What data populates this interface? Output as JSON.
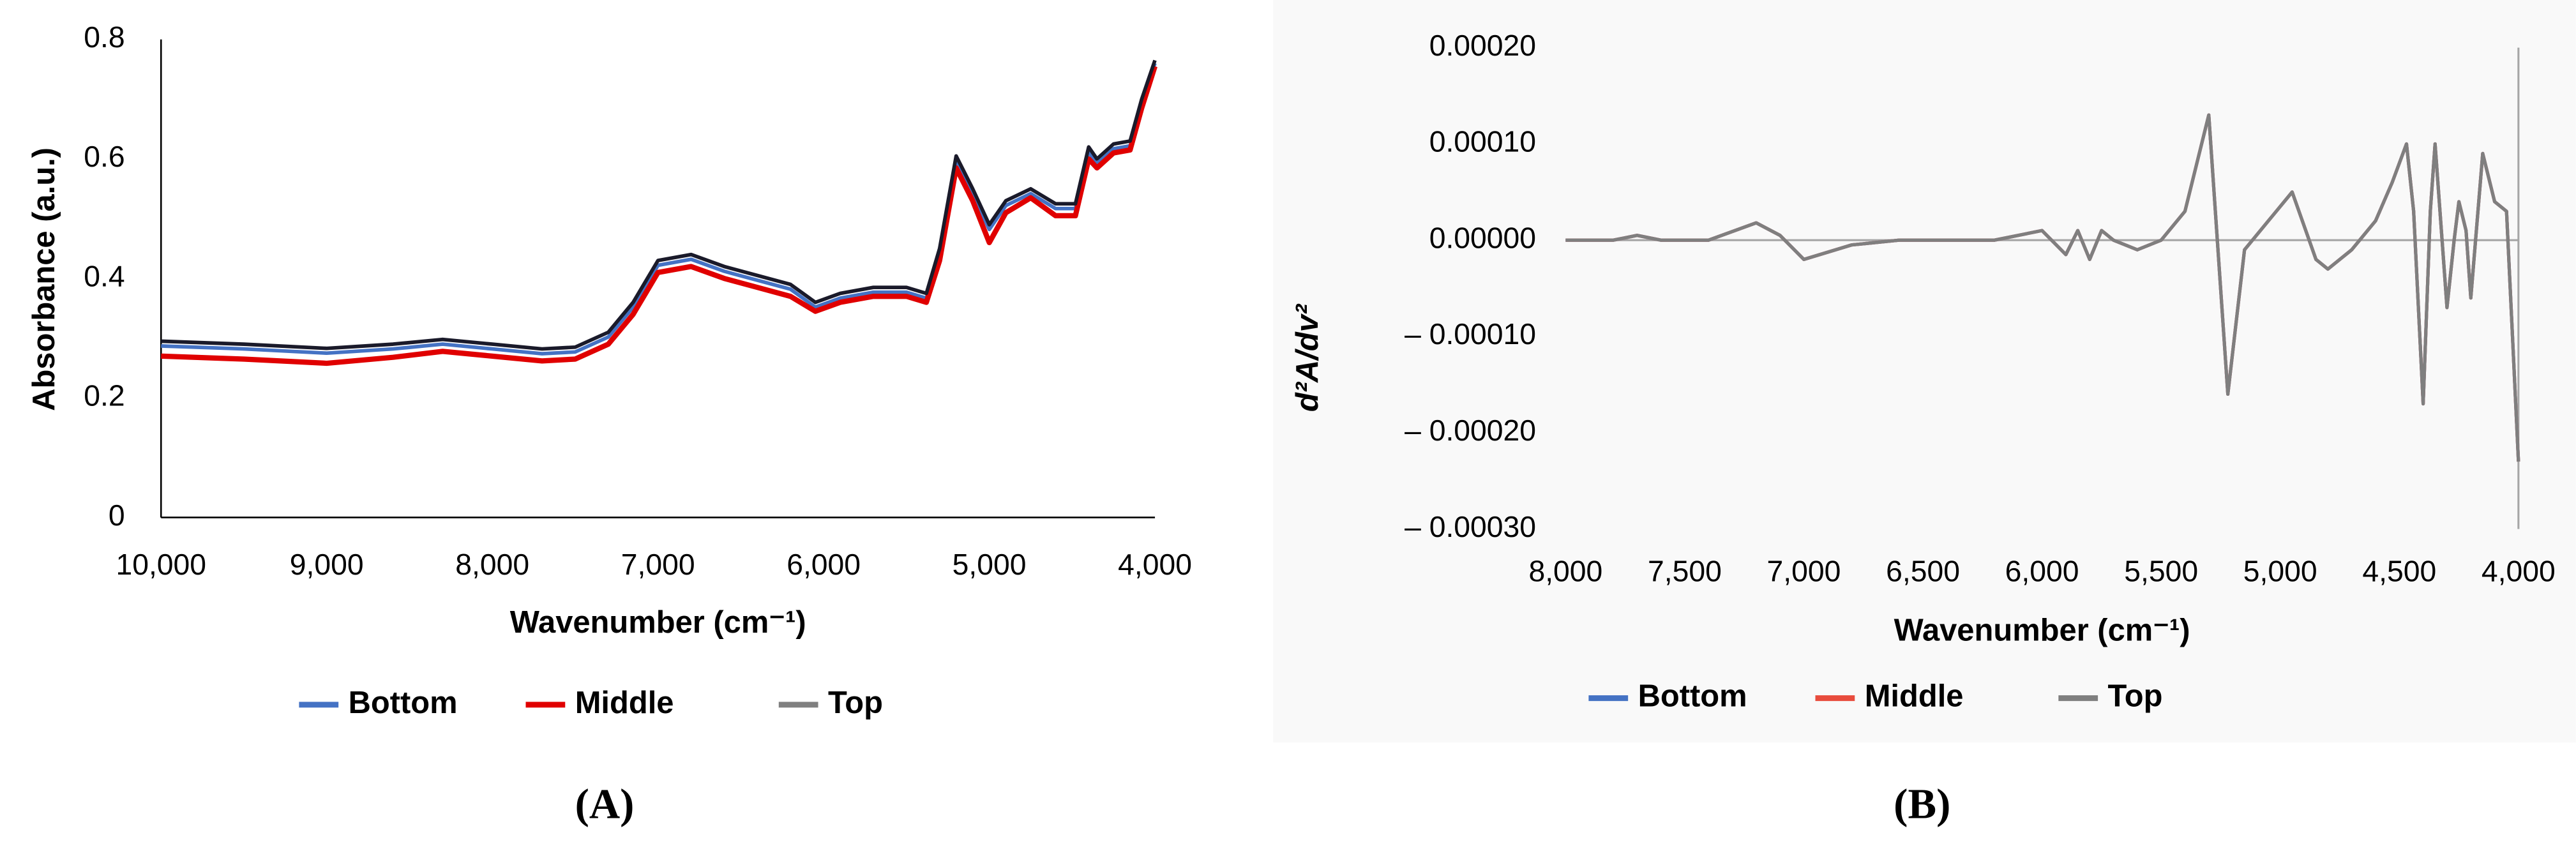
{
  "chart_data": [
    {
      "type": "line",
      "x_label": "Wavenumber (cm⁻¹)",
      "y_label": "Absorbance (a.u.)",
      "panel_label": "(A)",
      "x": [
        10000,
        9500,
        9000,
        8600,
        8300,
        8000,
        7700,
        7500,
        7300,
        7150,
        7000,
        6800,
        6600,
        6400,
        6200,
        6050,
        5900,
        5700,
        5500,
        5380,
        5300,
        5200,
        5100,
        5000,
        4900,
        4750,
        4600,
        4480,
        4400,
        4350,
        4250,
        4150,
        4080,
        4000
      ],
      "xlim": [
        10000,
        4000
      ],
      "xticks": [
        {
          "value": 10000,
          "label": "10,000"
        },
        {
          "value": 9000,
          "label": "9,000"
        },
        {
          "value": 8000,
          "label": "8,000"
        },
        {
          "value": 7000,
          "label": "7,000"
        },
        {
          "value": 6000,
          "label": "6,000"
        },
        {
          "value": 5000,
          "label": "5,000"
        },
        {
          "value": 4000,
          "label": "4,000"
        }
      ],
      "ylim": [
        0,
        0.8
      ],
      "yticks": [
        0,
        0.2,
        0.4,
        0.6,
        0.8
      ],
      "series": [
        {
          "name": "Bottom",
          "color": "#4472c4",
          "values": [
            0.287,
            0.282,
            0.275,
            0.282,
            0.29,
            0.282,
            0.274,
            0.277,
            0.302,
            0.352,
            0.422,
            0.432,
            0.412,
            0.397,
            0.382,
            0.352,
            0.367,
            0.377,
            0.377,
            0.367,
            0.442,
            0.597,
            0.542,
            0.482,
            0.522,
            0.542,
            0.517,
            0.517,
            0.612,
            0.592,
            0.617,
            0.622,
            0.692,
            0.76
          ]
        },
        {
          "name": "Middle",
          "color": "#e00000",
          "values": [
            0.27,
            0.265,
            0.258,
            0.268,
            0.278,
            0.27,
            0.262,
            0.265,
            0.29,
            0.34,
            0.41,
            0.42,
            0.4,
            0.385,
            0.37,
            0.345,
            0.36,
            0.37,
            0.37,
            0.36,
            0.43,
            0.585,
            0.53,
            0.46,
            0.51,
            0.535,
            0.505,
            0.505,
            0.6,
            0.585,
            0.61,
            0.615,
            0.685,
            0.755
          ]
        },
        {
          "name": "Top",
          "color": "#1a1a2a",
          "legend_color": "#808080",
          "values": [
            0.295,
            0.29,
            0.283,
            0.29,
            0.298,
            0.29,
            0.282,
            0.285,
            0.31,
            0.36,
            0.43,
            0.44,
            0.42,
            0.405,
            0.39,
            0.36,
            0.375,
            0.385,
            0.385,
            0.375,
            0.45,
            0.605,
            0.55,
            0.49,
            0.53,
            0.55,
            0.525,
            0.525,
            0.62,
            0.6,
            0.625,
            0.63,
            0.7,
            0.765
          ]
        }
      ]
    },
    {
      "type": "line",
      "x_label": "Wavenumber (cm⁻¹)",
      "y_label": "d²A/dv²",
      "panel_label": "(B)",
      "x": [
        8000,
        7800,
        7700,
        7600,
        7400,
        7200,
        7100,
        7000,
        6800,
        6600,
        6400,
        6200,
        6000,
        5900,
        5850,
        5800,
        5750,
        5700,
        5600,
        5500,
        5400,
        5300,
        5220,
        5150,
        5050,
        4950,
        4850,
        4800,
        4750,
        4700,
        4600,
        4530,
        4470,
        4440,
        4400,
        4370,
        4350,
        4300,
        4270,
        4250,
        4220,
        4200,
        4150,
        4100,
        4050,
        4000
      ],
      "xlim": [
        8000,
        4000
      ],
      "xticks": [
        {
          "value": 8000,
          "label": "8,000"
        },
        {
          "value": 7500,
          "label": "7,500"
        },
        {
          "value": 7000,
          "label": "7,000"
        },
        {
          "value": 6500,
          "label": "6,500"
        },
        {
          "value": 6000,
          "label": "6,000"
        },
        {
          "value": 5500,
          "label": "5,500"
        },
        {
          "value": 5000,
          "label": "5,000"
        },
        {
          "value": 4500,
          "label": "4,500"
        },
        {
          "value": 4000,
          "label": "4,000"
        }
      ],
      "ylim": [
        -0.0003,
        0.0002
      ],
      "yticks": [
        {
          "value": 0.0002,
          "label": "0.00020"
        },
        {
          "value": 0.0001,
          "label": "0.00010"
        },
        {
          "value": 0,
          "label": "0.00000"
        },
        {
          "value": -0.0001,
          "label": "– 0.00010"
        },
        {
          "value": -0.0002,
          "label": "– 0.00020"
        },
        {
          "value": -0.0003,
          "label": "– 0.00030"
        }
      ],
      "series": [
        {
          "name": "Bottom",
          "color": "#4472c4",
          "values": [
            0,
            0,
            5e-06,
            0,
            0,
            1.8e-05,
            5e-06,
            -2e-05,
            -5e-06,
            0,
            0,
            0,
            1e-05,
            -1.5e-05,
            1e-05,
            -2e-05,
            1e-05,
            0,
            -1e-05,
            0,
            3e-05,
            0.00013,
            -0.00016,
            -1e-05,
            2e-05,
            5e-05,
            -2e-05,
            -3e-05,
            -2e-05,
            -1e-05,
            2e-05,
            6e-05,
            0.0001,
            3e-05,
            -0.00017,
            3e-05,
            0.0001,
            -7e-05,
            0,
            4e-05,
            1e-05,
            -6e-05,
            9e-05,
            4e-05,
            3e-05,
            -0.00023
          ]
        },
        {
          "name": "Middle",
          "color": "#e84c3d",
          "values": [
            0,
            0,
            5e-06,
            0,
            0,
            1.8e-05,
            5e-06,
            -2e-05,
            -5e-06,
            0,
            0,
            0,
            1e-05,
            -1.5e-05,
            1e-05,
            -2e-05,
            1e-05,
            0,
            -1e-05,
            0,
            3e-05,
            0.00013,
            -0.00016,
            -1e-05,
            2e-05,
            5e-05,
            -2e-05,
            -3e-05,
            -2e-05,
            -1e-05,
            2e-05,
            6e-05,
            0.0001,
            3e-05,
            -0.00017,
            3e-05,
            0.0001,
            -7e-05,
            0,
            4e-05,
            1e-05,
            -6e-05,
            9e-05,
            4e-05,
            3e-05,
            -0.00023
          ]
        },
        {
          "name": "Top",
          "color": "#7f7f7f",
          "values": [
            0,
            0,
            5e-06,
            0,
            0,
            1.8e-05,
            5e-06,
            -2e-05,
            -5e-06,
            0,
            0,
            0,
            1e-05,
            -1.5e-05,
            1e-05,
            -2e-05,
            1e-05,
            0,
            -1e-05,
            0,
            3e-05,
            0.00013,
            -0.00016,
            -1e-05,
            2e-05,
            5e-05,
            -2e-05,
            -3e-05,
            -2e-05,
            -1e-05,
            2e-05,
            6e-05,
            0.0001,
            3e-05,
            -0.00017,
            3e-05,
            0.0001,
            -7e-05,
            0,
            4e-05,
            1e-05,
            -6e-05,
            9e-05,
            4e-05,
            3e-05,
            -0.00023
          ]
        }
      ]
    }
  ]
}
